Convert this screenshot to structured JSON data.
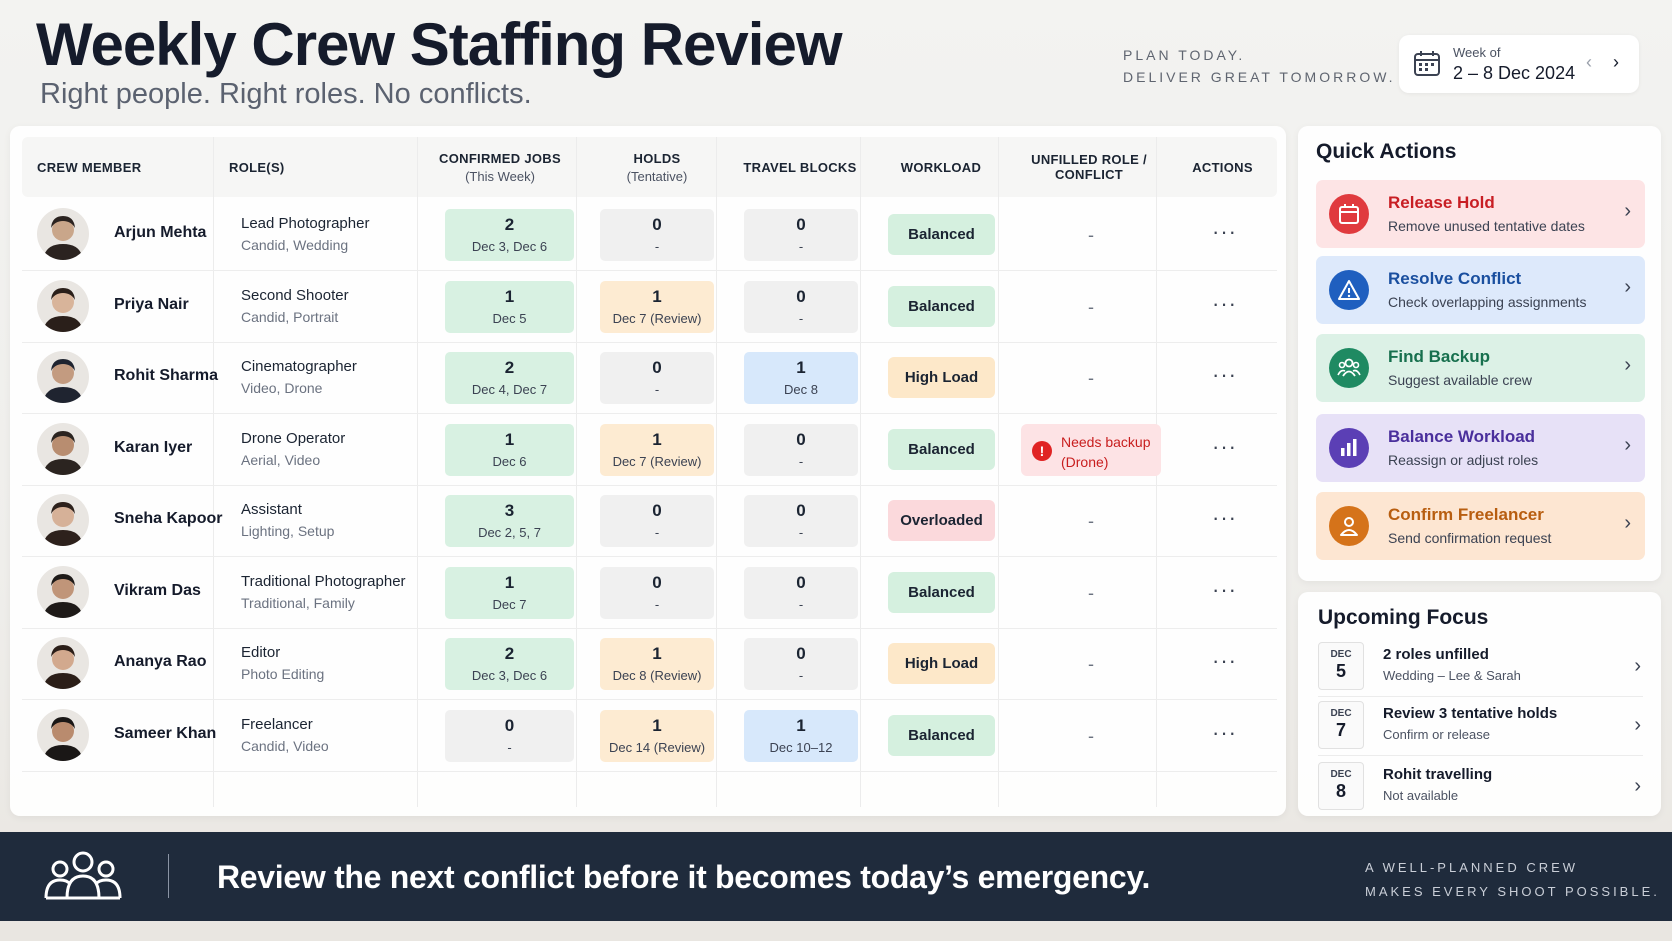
{
  "header": {
    "title": "Weekly Crew Staffing Review",
    "subtitle": "Right people. Right roles. No conflicts.",
    "tagline_1": "PLAN TODAY.",
    "tagline_2": "DELIVER GREAT TOMORROW.",
    "week_label": "Week of",
    "week_value": "2 – 8 Dec 2024"
  },
  "table": {
    "columns": {
      "crew": "CREW MEMBER",
      "roles": "ROLE(S)",
      "confirmed": "CONFIRMED JOBS",
      "confirmed_sub": "(This Week)",
      "holds": "HOLDS",
      "holds_sub": "(Tentative)",
      "travel": "TRAVEL BLOCKS",
      "workload": "WORKLOAD",
      "conflict_1": "UNFILLED ROLE /",
      "conflict_2": "CONFLICT",
      "actions": "ACTIONS"
    },
    "rows": [
      {
        "name": "Arjun Mehta",
        "role": "Lead Photographer",
        "role_sub": "Candid, Wedding",
        "conf_n": "2",
        "conf_d": "Dec 3, Dec 6",
        "hold_n": "0",
        "hold_d": "-",
        "trav_n": "0",
        "trav_d": "-",
        "workload": "Balanced",
        "conflict": "-",
        "actions": "···"
      },
      {
        "name": "Priya Nair",
        "role": "Second Shooter",
        "role_sub": "Candid, Portrait",
        "conf_n": "1",
        "conf_d": "Dec 5",
        "hold_n": "1",
        "hold_d": "Dec 7 (Review)",
        "trav_n": "0",
        "trav_d": "-",
        "workload": "Balanced",
        "conflict": "-",
        "actions": "···"
      },
      {
        "name": "Rohit Sharma",
        "role": "Cinematographer",
        "role_sub": "Video, Drone",
        "conf_n": "2",
        "conf_d": "Dec 4, Dec 7",
        "hold_n": "0",
        "hold_d": "-",
        "trav_n": "1",
        "trav_d": "Dec 8",
        "workload": "High Load",
        "conflict": "-",
        "actions": "···"
      },
      {
        "name": "Karan Iyer",
        "role": "Drone Operator",
        "role_sub": "Aerial, Video",
        "conf_n": "1",
        "conf_d": "Dec 6",
        "hold_n": "1",
        "hold_d": "Dec 7 (Review)",
        "trav_n": "0",
        "trav_d": "-",
        "workload": "Balanced",
        "conflict_1": "Needs backup",
        "conflict_2": "(Drone)",
        "actions": "···"
      },
      {
        "name": "Sneha Kapoor",
        "role": "Assistant",
        "role_sub": "Lighting, Setup",
        "conf_n": "3",
        "conf_d": "Dec 2, 5, 7",
        "hold_n": "0",
        "hold_d": "-",
        "trav_n": "0",
        "trav_d": "-",
        "workload": "Overloaded",
        "conflict": "-",
        "actions": "···"
      },
      {
        "name": "Vikram Das",
        "role": "Traditional Photographer",
        "role_sub": "Traditional, Family",
        "conf_n": "1",
        "conf_d": "Dec 7",
        "hold_n": "0",
        "hold_d": "-",
        "trav_n": "0",
        "trav_d": "-",
        "workload": "Balanced",
        "conflict": "-",
        "actions": "···"
      },
      {
        "name": "Ananya Rao",
        "role": "Editor",
        "role_sub": "Photo Editing",
        "conf_n": "2",
        "conf_d": "Dec 3, Dec 6",
        "hold_n": "1",
        "hold_d": "Dec 8 (Review)",
        "trav_n": "0",
        "trav_d": "-",
        "workload": "High Load",
        "conflict": "-",
        "actions": "···"
      },
      {
        "name": "Sameer Khan",
        "role": "Freelancer",
        "role_sub": "Candid, Video",
        "conf_n": "0",
        "conf_d": "-",
        "hold_n": "1",
        "hold_d": "Dec 14 (Review)",
        "trav_n": "1",
        "trav_d": "Dec 10–12",
        "workload": "Balanced",
        "conflict": "-",
        "actions": "···"
      }
    ]
  },
  "quick_actions": {
    "title": "Quick Actions",
    "items": [
      {
        "title": "Release Hold",
        "desc": "Remove unused tentative dates",
        "icon": "calendar-icon",
        "color": "#e03a3e"
      },
      {
        "title": "Resolve Conflict",
        "desc": "Check overlapping assignments",
        "icon": "warning-icon",
        "color": "#1f5fbf"
      },
      {
        "title": "Find Backup",
        "desc": "Suggest available crew",
        "icon": "people-icon",
        "color": "#1f8a62"
      },
      {
        "title": "Balance Workload",
        "desc": "Reassign or adjust roles",
        "icon": "bar-chart-icon",
        "color": "#5b3fb5"
      },
      {
        "title": "Confirm Freelancer",
        "desc": "Send confirmation request",
        "icon": "person-icon",
        "color": "#d5731a"
      }
    ]
  },
  "upcoming": {
    "title": "Upcoming Focus",
    "items": [
      {
        "month": "DEC",
        "day": "5",
        "title": "2 roles unfilled",
        "desc": "Wedding – Lee & Sarah"
      },
      {
        "month": "DEC",
        "day": "7",
        "title": "Review 3 tentative holds",
        "desc": "Confirm or release"
      },
      {
        "month": "DEC",
        "day": "8",
        "title": "Rohit travelling",
        "desc": "Not available"
      }
    ]
  },
  "footer": {
    "message": "Review the next conflict before it becomes today’s emergency.",
    "right_1": "A WELL-PLANNED CREW",
    "right_2": "MAKES EVERY SHOOT POSSIBLE."
  },
  "colors": {
    "confirmed_bg": "#d8f1e2",
    "hold_bg": "#fdebd2",
    "travel_bg": "#d7e8fb",
    "balanced": "#d5f0df",
    "high_load": "#fde8c9",
    "overloaded": "#fbd9dc",
    "footer_bg": "#1f2b3c"
  }
}
